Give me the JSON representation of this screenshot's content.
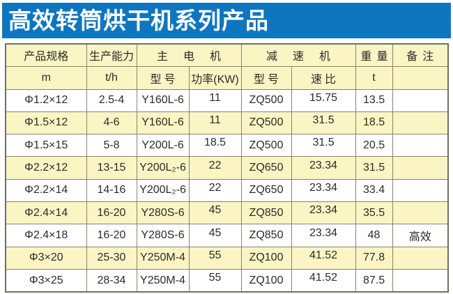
{
  "title": "高效转筒烘干机系列产品",
  "colors": {
    "banner_blue": "#0e76be",
    "header_yellow": "#fbf5c3",
    "alt_row_yellow": "#fbf5c3",
    "row_white": "#ffffff",
    "outer_border": "#6e6e64",
    "inner_border": "#83837a",
    "text": "#2b2b2b",
    "title_text": "#ffffff"
  },
  "table": {
    "header_row1": {
      "spec": "产品规格",
      "capacity": "生产能力",
      "main_motor": "主电机",
      "reducer": "减速机",
      "weight": "重量",
      "remark": "备注"
    },
    "header_row2": {
      "spec_unit": "m",
      "capacity_unit": "t/h",
      "motor_model": "型号",
      "motor_power": "功率(KW)",
      "reducer_model": "型号",
      "speed_ratio": "速比",
      "weight_unit": "t",
      "remark_unit": ""
    },
    "rows": [
      [
        "Φ1.2×12",
        "2.5-4",
        "Y160L-6",
        "11",
        "ZQ500",
        "15.75",
        "13.5",
        ""
      ],
      [
        "Φ1.5×12",
        "4-6",
        "Y160L-6",
        "11",
        "ZQ500",
        "31.5",
        "18.5",
        ""
      ],
      [
        "Φ1.5×15",
        "5-8",
        "Y200L-6",
        "18.5",
        "ZQ500",
        "31.5",
        "20.5",
        ""
      ],
      [
        "Φ2.2×12",
        "13-15",
        "Y200L₂-6",
        "22",
        "ZQ650",
        "23.34",
        "31.5",
        ""
      ],
      [
        "Φ2.2×14",
        "14-16",
        "Y200L₂-6",
        "22",
        "ZQ650",
        "23.34",
        "33.4",
        ""
      ],
      [
        "Φ2.4×14",
        "16-20",
        "Y280S-6",
        "45",
        "ZQ850",
        "23.34",
        "35.5",
        ""
      ],
      [
        "Φ2.4×18",
        "16-20",
        "Y280S-6",
        "45",
        "ZQ850",
        "23.34",
        "48",
        "高效"
      ],
      [
        "Φ3×20",
        "25-30",
        "Y250M-4",
        "55",
        "ZQ100",
        "41.52",
        "77.8",
        ""
      ],
      [
        "Φ3×25",
        "28-34",
        "Y250M-4",
        "55",
        "ZQ100",
        "41.52",
        "87.5",
        ""
      ]
    ]
  }
}
